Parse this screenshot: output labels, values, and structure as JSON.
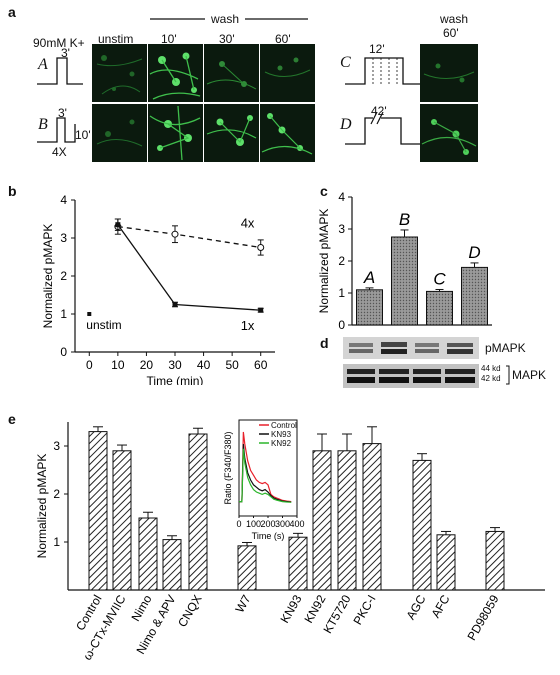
{
  "panels": {
    "a": "a",
    "b": "b",
    "c": "c",
    "d": "d",
    "e": "e"
  },
  "panel_a": {
    "stim_label": "90mM K+",
    "col_unstim": "unstim",
    "wash_header": "wash",
    "wash_times": [
      "10'",
      "30'",
      "60'"
    ],
    "proto_A": {
      "letter": "A",
      "duration": "3'"
    },
    "proto_B": {
      "letter": "B",
      "duration": "3'",
      "interval": "10'",
      "repeat": "4X"
    },
    "proto_C": {
      "letter": "C",
      "duration": "12'"
    },
    "proto_D": {
      "letter": "D",
      "duration": "42'"
    },
    "wash60_header": "wash",
    "wash60_time": "60'"
  },
  "panel_d": {
    "pmapk_label": "pMAPK",
    "mapk_label": "MAPK",
    "kd44": "44 kd",
    "kd42": "42 kd"
  },
  "chart_data": [
    {
      "id": "b",
      "type": "line",
      "xlabel": "Time (min)",
      "ylabel": "Normalized pMAPK",
      "xlim": [
        -5,
        65
      ],
      "ylim": [
        0,
        4
      ],
      "xticks": [
        0,
        10,
        20,
        30,
        40,
        50,
        60
      ],
      "yticks": [
        0,
        1,
        2,
        3,
        4
      ],
      "series": [
        {
          "name": "4x",
          "style": "dashed",
          "marker": "open-circle",
          "x": [
            10,
            30,
            60
          ],
          "y": [
            3.3,
            3.1,
            2.75
          ],
          "err": [
            0.2,
            0.22,
            0.2
          ]
        },
        {
          "name": "1x",
          "style": "solid",
          "marker": "filled-square",
          "x": [
            10,
            30,
            60
          ],
          "y": [
            3.35,
            1.25,
            1.1
          ],
          "err": [
            0.15,
            0.06,
            0.05
          ]
        }
      ],
      "baseline": {
        "label": "unstim",
        "x": 0,
        "y": 1.0
      }
    },
    {
      "id": "c",
      "type": "bar",
      "ylabel": "Normalized pMAPK",
      "ylim": [
        0,
        4
      ],
      "yticks": [
        0,
        1,
        2,
        3,
        4
      ],
      "categories": [
        "A",
        "B",
        "C",
        "D"
      ],
      "values": [
        1.1,
        2.75,
        1.05,
        1.8
      ],
      "err": [
        0.06,
        0.22,
        0.06,
        0.14
      ]
    },
    {
      "id": "e",
      "type": "bar",
      "ylabel": "Normalized pMAPK",
      "ylim": [
        0,
        3.5
      ],
      "yticks": [
        1,
        2,
        3
      ],
      "categories": [
        "Control",
        "ω-CTx-MVIIC",
        "Nimo",
        "Nimo & APV",
        "CNQX",
        "W7",
        "KN93",
        "KN92",
        "KT5720",
        "PKC-I",
        "AGC",
        "AFC",
        "PD98059"
      ],
      "values": [
        3.3,
        2.9,
        1.5,
        1.05,
        3.25,
        0.92,
        1.1,
        2.9,
        2.9,
        3.05,
        2.7,
        1.15,
        1.22
      ],
      "err": [
        0.1,
        0.12,
        0.12,
        0.08,
        0.12,
        0.07,
        0.08,
        0.35,
        0.35,
        0.35,
        0.14,
        0.07,
        0.08
      ]
    },
    {
      "id": "e-inset",
      "type": "line",
      "xlabel": "Time (s)",
      "ylabel": "Ratio (F340/F380)",
      "xlim": [
        0,
        400
      ],
      "ylim": [
        0,
        4
      ],
      "xticks": [
        0,
        100,
        200,
        300,
        400
      ],
      "yticks": [
        0,
        1,
        2,
        3,
        4
      ],
      "series": [
        {
          "name": "Control",
          "color": "#e8202a",
          "x": [
            0,
            20,
            30,
            40,
            60,
            80,
            100,
            120,
            140,
            160,
            180,
            200,
            220,
            240,
            260,
            280,
            300,
            330,
            360
          ],
          "y": [
            0.6,
            0.6,
            3.5,
            3.0,
            2.3,
            1.9,
            1.7,
            1.5,
            1.4,
            1.35,
            1.4,
            1.3,
            0.9,
            0.8,
            0.75,
            0.7,
            0.65,
            0.62,
            0.6
          ]
        },
        {
          "name": "KN93",
          "color": "#111111",
          "x": [
            0,
            20,
            30,
            40,
            60,
            80,
            100,
            120,
            140,
            160,
            180,
            200,
            220,
            240,
            260,
            280,
            300,
            330,
            360
          ],
          "y": [
            0.6,
            0.6,
            3.0,
            2.4,
            1.8,
            1.5,
            1.3,
            1.2,
            1.1,
            1.05,
            1.1,
            1.0,
            0.85,
            0.75,
            0.7,
            0.66,
            0.62,
            0.6,
            0.58
          ]
        },
        {
          "name": "KN92",
          "color": "#2bb52b",
          "x": [
            0,
            20,
            30,
            40,
            60,
            80,
            100,
            120,
            140,
            160,
            180,
            200,
            220,
            240,
            260,
            280,
            300,
            330,
            360
          ],
          "y": [
            0.6,
            0.6,
            2.8,
            2.2,
            1.6,
            1.3,
            1.1,
            1.0,
            0.95,
            0.9,
            0.95,
            0.9,
            0.8,
            0.7,
            0.66,
            0.63,
            0.6,
            0.58,
            0.57
          ]
        }
      ]
    }
  ]
}
